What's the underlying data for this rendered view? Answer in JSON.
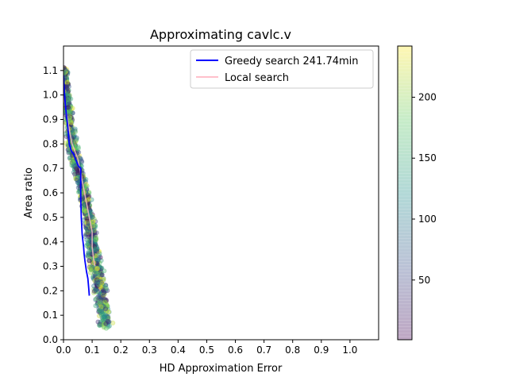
{
  "chart_data": {
    "type": "scatter",
    "title": "Approximating cavlc.v",
    "xlabel": "HD Approximation Error",
    "ylabel": "Area ratio",
    "xlim": [
      0.0,
      1.1
    ],
    "ylim": [
      0.0,
      1.2
    ],
    "xticks": [
      "0.0",
      "0.1",
      "0.2",
      "0.3",
      "0.4",
      "0.5",
      "0.6",
      "0.7",
      "0.8",
      "0.9",
      "1.0"
    ],
    "yticks": [
      "0.0",
      "0.1",
      "0.2",
      "0.3",
      "0.4",
      "0.5",
      "0.6",
      "0.7",
      "0.8",
      "0.9",
      "1.0",
      "1.1"
    ],
    "legend": {
      "placement": "top-right",
      "entries": [
        {
          "label": "Greedy search 241.74min",
          "color": "#0000ff"
        },
        {
          "label": "Local search",
          "color": "#ffc0cb"
        }
      ]
    },
    "colorbar": {
      "colormap": "viridis",
      "range": [
        1,
        242
      ],
      "ticks": [
        "50",
        "100",
        "150",
        "200"
      ],
      "alpha": 0.3
    },
    "series": [
      {
        "name": "Greedy search 241.74min",
        "kind": "line",
        "color": "#0000ff",
        "x": [
          0.0,
          0.005,
          0.01,
          0.015,
          0.02,
          0.028,
          0.035,
          0.045,
          0.052,
          0.06,
          0.06,
          0.062,
          0.065,
          0.07,
          0.072,
          0.075,
          0.08,
          0.085,
          0.088,
          0.09
        ],
        "y": [
          1.08,
          0.98,
          0.92,
          0.87,
          0.8,
          0.77,
          0.76,
          0.73,
          0.71,
          0.7,
          0.58,
          0.5,
          0.43,
          0.38,
          0.35,
          0.32,
          0.28,
          0.25,
          0.21,
          0.18
        ]
      },
      {
        "name": "Local search",
        "kind": "line",
        "color": "#ffc0cb",
        "x": [
          0.0,
          0.01,
          0.02,
          0.03,
          0.05,
          0.06,
          0.07,
          0.08,
          0.09,
          0.1,
          0.1,
          0.105,
          0.11
        ],
        "y": [
          1.0,
          0.93,
          0.86,
          0.8,
          0.74,
          0.68,
          0.62,
          0.56,
          0.5,
          0.44,
          0.38,
          0.33,
          0.3
        ]
      },
      {
        "kind": "scatter",
        "colormap": "viridis",
        "band_center_x": [
          0.0,
          0.02,
          0.03,
          0.05,
          0.07,
          0.09,
          0.1,
          0.11,
          0.12,
          0.13,
          0.14,
          0.15
        ],
        "band_center_y": [
          1.1,
          0.9,
          0.8,
          0.7,
          0.6,
          0.5,
          0.4,
          0.3,
          0.25,
          0.2,
          0.12,
          0.05
        ],
        "count": 1600
      }
    ]
  }
}
